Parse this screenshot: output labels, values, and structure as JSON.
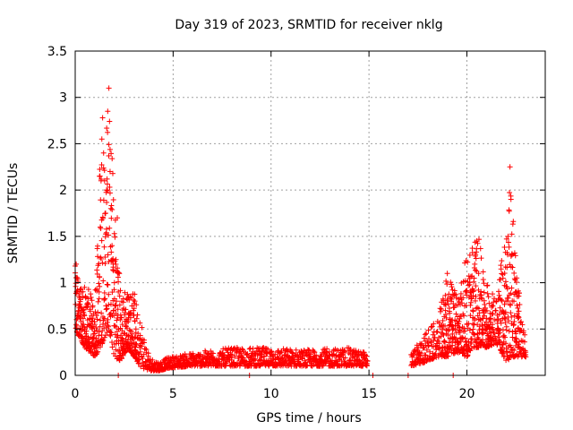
{
  "chart_data": {
    "type": "scatter",
    "title": "Day 319 of 2023, SRMTID for receiver nklg",
    "xlabel": "GPS time / hours",
    "ylabel": "SRMTID / TECUs",
    "xlim": [
      0,
      24
    ],
    "ylim": [
      0,
      3.5
    ],
    "xticks": [
      0,
      5,
      10,
      15,
      20
    ],
    "yticks": [
      0,
      0.5,
      1,
      1.5,
      2,
      2.5,
      3,
      3.5
    ],
    "ytick_labels": [
      "0",
      "0.5",
      "1",
      "1.5",
      "2",
      "2.5",
      "3",
      "3.5"
    ],
    "grid": true,
    "marker": "+",
    "color": "#ff0000",
    "series": [
      {
        "name": "nklg",
        "envelope_hours": [
          0,
          0.5,
          1.0,
          1.3,
          1.5,
          1.7,
          2.0,
          2.3,
          2.7,
          3.0,
          3.4,
          3.8,
          4.3,
          4.8,
          6,
          8,
          10,
          12,
          14,
          14.9,
          17.2,
          18,
          18.5,
          19,
          19.5,
          20,
          20.3,
          20.6,
          21,
          21.5,
          22,
          22.3,
          22.5,
          22.8,
          23
        ],
        "envelope_max": [
          1.2,
          1.0,
          0.8,
          2.8,
          2.6,
          3.1,
          2.0,
          1.0,
          0.9,
          0.9,
          0.6,
          0.2,
          0.15,
          0.2,
          0.25,
          0.3,
          0.3,
          0.28,
          0.3,
          0.25,
          0.25,
          0.5,
          0.6,
          1.1,
          0.9,
          1.3,
          1.5,
          1.5,
          1.0,
          0.9,
          1.6,
          2.3,
          1.3,
          0.6,
          0.4
        ],
        "envelope_min": [
          0.5,
          0.3,
          0.2,
          0.3,
          0.4,
          0.5,
          0.2,
          0.15,
          0.3,
          0.2,
          0.08,
          0.05,
          0.05,
          0.08,
          0.1,
          0.1,
          0.1,
          0.1,
          0.1,
          0.1,
          0.1,
          0.15,
          0.2,
          0.2,
          0.25,
          0.2,
          0.3,
          0.3,
          0.3,
          0.35,
          0.15,
          0.2,
          0.2,
          0.2,
          0.2
        ],
        "points": [
          [
            0.0,
            1.18
          ],
          [
            0.05,
            1.2
          ],
          [
            0.12,
            0.92
          ],
          [
            0.18,
            0.75
          ],
          [
            0.25,
            0.62
          ],
          [
            0.3,
            0.58
          ],
          [
            0.38,
            0.7
          ],
          [
            0.42,
            0.55
          ],
          [
            0.5,
            0.5
          ],
          [
            0.58,
            0.42
          ],
          [
            0.65,
            0.35
          ],
          [
            0.72,
            0.3
          ],
          [
            0.8,
            0.28
          ],
          [
            0.9,
            0.35
          ],
          [
            1.0,
            0.45
          ],
          [
            1.08,
            0.4
          ],
          [
            1.15,
            0.68
          ],
          [
            1.22,
            0.9
          ],
          [
            1.28,
            1.6
          ],
          [
            1.32,
            2.1
          ],
          [
            1.36,
            2.55
          ],
          [
            1.4,
            2.78
          ],
          [
            1.45,
            2.4
          ],
          [
            1.5,
            2.1
          ],
          [
            1.55,
            1.75
          ],
          [
            1.6,
            2.0
          ],
          [
            1.66,
            2.85
          ],
          [
            1.72,
            3.1
          ],
          [
            1.78,
            2.2
          ],
          [
            1.82,
            1.8
          ],
          [
            1.88,
            1.4
          ],
          [
            1.94,
            1.2
          ],
          [
            2.0,
            1.0
          ],
          [
            2.08,
            1.25
          ],
          [
            2.15,
            1.7
          ],
          [
            2.2,
            0.9
          ],
          [
            2.3,
            0.6
          ],
          [
            2.4,
            0.4
          ],
          [
            2.5,
            0.3
          ],
          [
            2.6,
            0.35
          ],
          [
            2.7,
            0.6
          ],
          [
            2.8,
            0.85
          ],
          [
            2.9,
            0.75
          ],
          [
            3.0,
            0.65
          ],
          [
            3.1,
            0.5
          ],
          [
            3.2,
            0.4
          ],
          [
            3.3,
            0.3
          ],
          [
            3.4,
            0.2
          ],
          [
            3.6,
            0.15
          ],
          [
            3.8,
            0.12
          ],
          [
            4.0,
            0.1
          ],
          [
            4.2,
            0.08
          ],
          [
            4.4,
            0.09
          ],
          [
            4.6,
            0.12
          ],
          [
            4.8,
            0.14
          ],
          [
            5.0,
            0.16
          ],
          [
            5.5,
            0.12
          ],
          [
            6.0,
            0.14
          ],
          [
            6.5,
            0.18
          ],
          [
            7.0,
            0.2
          ],
          [
            7.5,
            0.18
          ],
          [
            8.0,
            0.22
          ],
          [
            8.5,
            0.2
          ],
          [
            9.0,
            0.17
          ],
          [
            9.5,
            0.19
          ],
          [
            10.0,
            0.23
          ],
          [
            10.5,
            0.18
          ],
          [
            11.0,
            0.16
          ],
          [
            11.5,
            0.2
          ],
          [
            12.0,
            0.18
          ],
          [
            12.5,
            0.17
          ],
          [
            13.0,
            0.15
          ],
          [
            13.5,
            0.17
          ],
          [
            14.0,
            0.16
          ],
          [
            14.3,
            0.2
          ],
          [
            14.6,
            0.22
          ],
          [
            14.8,
            0.18
          ],
          [
            17.2,
            0.2
          ],
          [
            17.5,
            0.25
          ],
          [
            17.8,
            0.3
          ],
          [
            18.0,
            0.35
          ],
          [
            18.3,
            0.38
          ],
          [
            18.6,
            0.3
          ],
          [
            18.9,
            0.7
          ],
          [
            19.0,
            1.1
          ],
          [
            19.2,
            0.8
          ],
          [
            19.4,
            0.5
          ],
          [
            19.6,
            0.35
          ],
          [
            19.8,
            0.4
          ],
          [
            20.0,
            0.55
          ],
          [
            20.2,
            0.9
          ],
          [
            20.4,
            1.2
          ],
          [
            20.5,
            1.45
          ],
          [
            20.6,
            1.1
          ],
          [
            20.8,
            0.7
          ],
          [
            21.0,
            0.5
          ],
          [
            21.2,
            0.55
          ],
          [
            21.4,
            0.6
          ],
          [
            21.6,
            0.45
          ],
          [
            21.8,
            0.3
          ],
          [
            22.0,
            0.25
          ],
          [
            22.1,
            1.5
          ],
          [
            22.2,
            2.25
          ],
          [
            22.25,
            1.9
          ],
          [
            22.3,
            1.3
          ],
          [
            22.4,
            0.8
          ],
          [
            22.5,
            0.45
          ],
          [
            22.6,
            0.3
          ],
          [
            22.8,
            0.28
          ],
          [
            22.9,
            0.27
          ],
          [
            23.0,
            0.25
          ],
          [
            2.2,
            0.0
          ],
          [
            8.9,
            0.0
          ],
          [
            15.2,
            0.0
          ],
          [
            17.0,
            0.0
          ],
          [
            19.3,
            0.0
          ]
        ]
      }
    ]
  }
}
